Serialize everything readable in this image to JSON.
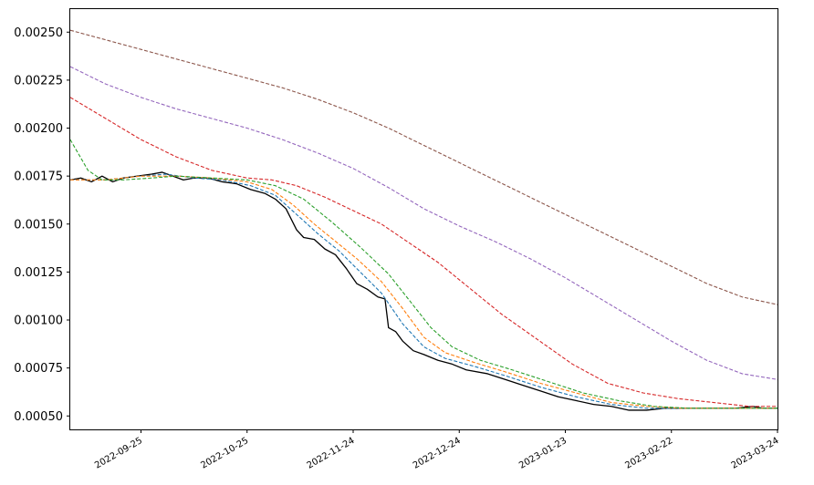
{
  "chart_data": {
    "type": "line",
    "title": "",
    "xlabel": "",
    "ylabel": "",
    "grid": false,
    "legend": "none",
    "xlim": [
      "2022-09-05",
      "2023-03-24"
    ],
    "ylim": [
      0.00043,
      0.00262
    ],
    "y_ticks": [
      "0.00050",
      "0.00075",
      "0.00100",
      "0.00125",
      "0.00150",
      "0.00175",
      "0.00200",
      "0.00225",
      "0.00250"
    ],
    "x_ticks": [
      "2022-09-25",
      "2022-10-25",
      "2022-11-24",
      "2022-12-24",
      "2023-01-23",
      "2023-02-22",
      "2023-03-24"
    ],
    "series": [
      {
        "color": "#000000",
        "style": "solid",
        "points": [
          [
            "2022-09-05",
            0.00173
          ],
          [
            "2022-09-08",
            0.00174
          ],
          [
            "2022-09-11",
            0.00172
          ],
          [
            "2022-09-14",
            0.00175
          ],
          [
            "2022-09-17",
            0.00172
          ],
          [
            "2022-09-20",
            0.00174
          ],
          [
            "2022-09-24",
            0.00175
          ],
          [
            "2022-09-28",
            0.00176
          ],
          [
            "2022-10-01",
            0.00177
          ],
          [
            "2022-10-04",
            0.00175
          ],
          [
            "2022-10-07",
            0.00173
          ],
          [
            "2022-10-10",
            0.00174
          ],
          [
            "2022-10-14",
            0.00174
          ],
          [
            "2022-10-18",
            0.00172
          ],
          [
            "2022-10-22",
            0.00171
          ],
          [
            "2022-10-26",
            0.00168
          ],
          [
            "2022-10-30",
            0.00166
          ],
          [
            "2022-11-02",
            0.00163
          ],
          [
            "2022-11-05",
            0.00158
          ],
          [
            "2022-11-08",
            0.00147
          ],
          [
            "2022-11-10",
            0.00143
          ],
          [
            "2022-11-13",
            0.00142
          ],
          [
            "2022-11-16",
            0.00137
          ],
          [
            "2022-11-19",
            0.00134
          ],
          [
            "2022-11-22",
            0.00127
          ],
          [
            "2022-11-25",
            0.00119
          ],
          [
            "2022-11-28",
            0.00116
          ],
          [
            "2022-12-01",
            0.00112
          ],
          [
            "2022-12-03",
            0.00111
          ],
          [
            "2022-12-04",
            0.00096
          ],
          [
            "2022-12-06",
            0.00094
          ],
          [
            "2022-12-08",
            0.00089
          ],
          [
            "2022-12-11",
            0.00084
          ],
          [
            "2022-12-14",
            0.00082
          ],
          [
            "2022-12-18",
            0.00079
          ],
          [
            "2022-12-22",
            0.00077
          ],
          [
            "2022-12-26",
            0.00074
          ],
          [
            "2023-01-01",
            0.00072
          ],
          [
            "2023-01-06",
            0.00069
          ],
          [
            "2023-01-11",
            0.00066
          ],
          [
            "2023-01-16",
            0.00063
          ],
          [
            "2023-01-21",
            0.0006
          ],
          [
            "2023-01-26",
            0.00058
          ],
          [
            "2023-01-31",
            0.00056
          ],
          [
            "2023-02-05",
            0.00055
          ],
          [
            "2023-02-10",
            0.00053
          ],
          [
            "2023-02-15",
            0.00053
          ],
          [
            "2023-02-20",
            0.00054
          ],
          [
            "2023-02-25",
            0.00054
          ],
          [
            "2023-03-02",
            0.00054
          ],
          [
            "2023-03-07",
            0.00054
          ],
          [
            "2023-03-12",
            0.00054
          ],
          [
            "2023-03-17",
            0.00055
          ],
          [
            "2023-03-20",
            0.00054
          ],
          [
            "2023-03-24",
            0.00054
          ]
        ]
      },
      {
        "color": "#1f77b4",
        "style": "dashed",
        "points": [
          [
            "2022-09-05",
            0.00173
          ],
          [
            "2022-09-15",
            0.00173
          ],
          [
            "2022-09-25",
            0.00175
          ],
          [
            "2022-10-02",
            0.00176
          ],
          [
            "2022-10-10",
            0.00174
          ],
          [
            "2022-10-18",
            0.00173
          ],
          [
            "2022-10-26",
            0.0017
          ],
          [
            "2022-11-02",
            0.00165
          ],
          [
            "2022-11-08",
            0.00155
          ],
          [
            "2022-11-14",
            0.00145
          ],
          [
            "2022-11-20",
            0.00136
          ],
          [
            "2022-11-26",
            0.00125
          ],
          [
            "2022-12-02",
            0.00114
          ],
          [
            "2022-12-08",
            0.00098
          ],
          [
            "2022-12-14",
            0.00086
          ],
          [
            "2022-12-20",
            0.0008
          ],
          [
            "2022-12-28",
            0.00076
          ],
          [
            "2023-01-06",
            0.00071
          ],
          [
            "2023-01-16",
            0.00065
          ],
          [
            "2023-01-26",
            0.0006
          ],
          [
            "2023-02-05",
            0.00056
          ],
          [
            "2023-02-15",
            0.00054
          ],
          [
            "2023-02-25",
            0.00054
          ],
          [
            "2023-03-07",
            0.00054
          ],
          [
            "2023-03-17",
            0.00054
          ],
          [
            "2023-03-24",
            0.00054
          ]
        ]
      },
      {
        "color": "#ff7f0e",
        "style": "dashed",
        "points": [
          [
            "2022-09-05",
            0.00173
          ],
          [
            "2022-09-15",
            0.00173
          ],
          [
            "2022-09-25",
            0.00175
          ],
          [
            "2022-10-05",
            0.00175
          ],
          [
            "2022-10-15",
            0.00174
          ],
          [
            "2022-10-25",
            0.00172
          ],
          [
            "2022-11-01",
            0.00168
          ],
          [
            "2022-11-07",
            0.0016
          ],
          [
            "2022-11-13",
            0.0015
          ],
          [
            "2022-11-19",
            0.00141
          ],
          [
            "2022-11-25",
            0.00132
          ],
          [
            "2022-12-02",
            0.0012
          ],
          [
            "2022-12-08",
            0.00106
          ],
          [
            "2022-12-14",
            0.00091
          ],
          [
            "2022-12-20",
            0.00083
          ],
          [
            "2022-12-28",
            0.00078
          ],
          [
            "2023-01-06",
            0.00073
          ],
          [
            "2023-01-16",
            0.00067
          ],
          [
            "2023-01-26",
            0.00062
          ],
          [
            "2023-02-05",
            0.00057
          ],
          [
            "2023-02-15",
            0.00055
          ],
          [
            "2023-02-25",
            0.00054
          ],
          [
            "2023-03-07",
            0.00054
          ],
          [
            "2023-03-17",
            0.00054
          ],
          [
            "2023-03-24",
            0.00054
          ]
        ]
      },
      {
        "color": "#2ca02c",
        "style": "dashed",
        "points": [
          [
            "2022-09-05",
            0.00194
          ],
          [
            "2022-09-10",
            0.00178
          ],
          [
            "2022-09-14",
            0.00173
          ],
          [
            "2022-09-20",
            0.00173
          ],
          [
            "2022-09-28",
            0.00174
          ],
          [
            "2022-10-05",
            0.00175
          ],
          [
            "2022-10-15",
            0.00174
          ],
          [
            "2022-10-25",
            0.00173
          ],
          [
            "2022-11-02",
            0.0017
          ],
          [
            "2022-11-10",
            0.00163
          ],
          [
            "2022-11-18",
            0.00151
          ],
          [
            "2022-11-26",
            0.00138
          ],
          [
            "2022-12-04",
            0.00124
          ],
          [
            "2022-12-10",
            0.0011
          ],
          [
            "2022-12-16",
            0.00096
          ],
          [
            "2022-12-22",
            0.00086
          ],
          [
            "2022-12-30",
            0.00079
          ],
          [
            "2023-01-08",
            0.00074
          ],
          [
            "2023-01-18",
            0.00068
          ],
          [
            "2023-01-28",
            0.00062
          ],
          [
            "2023-02-07",
            0.00058
          ],
          [
            "2023-02-17",
            0.00055
          ],
          [
            "2023-02-27",
            0.00054
          ],
          [
            "2023-03-09",
            0.00054
          ],
          [
            "2023-03-24",
            0.00054
          ]
        ]
      },
      {
        "color": "#d62728",
        "style": "dashed",
        "points": [
          [
            "2022-09-05",
            0.00216
          ],
          [
            "2022-09-15",
            0.00205
          ],
          [
            "2022-09-25",
            0.00194
          ],
          [
            "2022-10-05",
            0.00185
          ],
          [
            "2022-10-15",
            0.00178
          ],
          [
            "2022-10-25",
            0.00174
          ],
          [
            "2022-11-01",
            0.00173
          ],
          [
            "2022-11-08",
            0.0017
          ],
          [
            "2022-11-16",
            0.00164
          ],
          [
            "2022-11-24",
            0.00157
          ],
          [
            "2022-12-02",
            0.0015
          ],
          [
            "2022-12-10",
            0.0014
          ],
          [
            "2022-12-18",
            0.0013
          ],
          [
            "2022-12-26",
            0.00118
          ],
          [
            "2023-01-05",
            0.00103
          ],
          [
            "2023-01-15",
            0.0009
          ],
          [
            "2023-01-25",
            0.00077
          ],
          [
            "2023-02-04",
            0.00067
          ],
          [
            "2023-02-14",
            0.00062
          ],
          [
            "2023-02-24",
            0.00059
          ],
          [
            "2023-03-06",
            0.00057
          ],
          [
            "2023-03-16",
            0.00055
          ],
          [
            "2023-03-24",
            0.00055
          ]
        ]
      },
      {
        "color": "#9467bd",
        "style": "dashed",
        "points": [
          [
            "2022-09-05",
            0.00232
          ],
          [
            "2022-09-15",
            0.00223
          ],
          [
            "2022-09-25",
            0.00216
          ],
          [
            "2022-10-05",
            0.0021
          ],
          [
            "2022-10-15",
            0.00205
          ],
          [
            "2022-10-25",
            0.002
          ],
          [
            "2022-11-04",
            0.00194
          ],
          [
            "2022-11-14",
            0.00187
          ],
          [
            "2022-11-24",
            0.00179
          ],
          [
            "2022-12-04",
            0.00169
          ],
          [
            "2022-12-14",
            0.00158
          ],
          [
            "2022-12-24",
            0.00149
          ],
          [
            "2023-01-03",
            0.00141
          ],
          [
            "2023-01-13",
            0.00132
          ],
          [
            "2023-01-23",
            0.00122
          ],
          [
            "2023-02-02",
            0.00111
          ],
          [
            "2023-02-12",
            0.001
          ],
          [
            "2023-02-22",
            0.00089
          ],
          [
            "2023-03-04",
            0.00079
          ],
          [
            "2023-03-14",
            0.00072
          ],
          [
            "2023-03-24",
            0.00069
          ]
        ]
      },
      {
        "color": "#8c564b",
        "style": "dashed",
        "points": [
          [
            "2022-09-05",
            0.00251
          ],
          [
            "2022-09-15",
            0.00246
          ],
          [
            "2022-09-25",
            0.00241
          ],
          [
            "2022-10-05",
            0.00236
          ],
          [
            "2022-10-15",
            0.00231
          ],
          [
            "2022-10-25",
            0.00226
          ],
          [
            "2022-11-04",
            0.00221
          ],
          [
            "2022-11-14",
            0.00215
          ],
          [
            "2022-11-24",
            0.00208
          ],
          [
            "2022-12-04",
            0.002
          ],
          [
            "2022-12-14",
            0.00191
          ],
          [
            "2022-12-24",
            0.00182
          ],
          [
            "2023-01-03",
            0.00173
          ],
          [
            "2023-01-13",
            0.00164
          ],
          [
            "2023-01-23",
            0.00155
          ],
          [
            "2023-02-02",
            0.00146
          ],
          [
            "2023-02-12",
            0.00137
          ],
          [
            "2023-02-22",
            0.00128
          ],
          [
            "2023-03-04",
            0.00119
          ],
          [
            "2023-03-14",
            0.00112
          ],
          [
            "2023-03-24",
            0.00108
          ]
        ]
      }
    ]
  }
}
